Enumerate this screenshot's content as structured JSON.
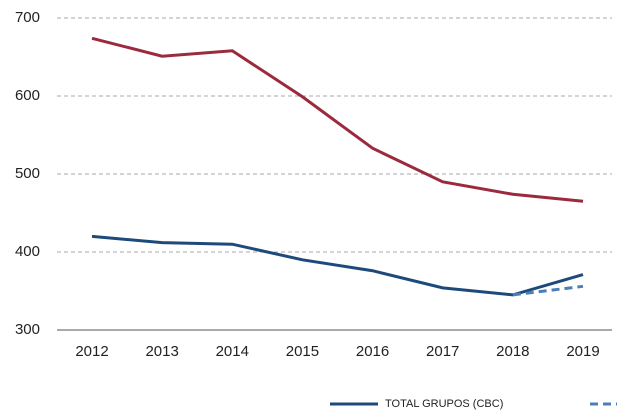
{
  "chart_data": {
    "type": "line",
    "categories": [
      "2012",
      "2013",
      "2014",
      "2015",
      "2016",
      "2017",
      "2018",
      "2019"
    ],
    "series": [
      {
        "color": "#9b2a3c",
        "values": [
          674,
          651,
          658,
          599,
          533,
          490,
          474,
          465
        ]
      },
      {
        "name": "TOTAL GRUPOS (CBC)",
        "color": "#1d4a7a",
        "values": [
          420,
          412,
          410,
          390,
          376,
          354,
          345,
          371
        ]
      },
      {
        "color": "#4a7fb8",
        "dashed": true,
        "values": [
          null,
          null,
          null,
          null,
          null,
          null,
          345,
          356
        ]
      }
    ],
    "ylim": [
      300,
      700
    ],
    "yticks": [
      300,
      400,
      500,
      600,
      700
    ],
    "grid": true
  }
}
